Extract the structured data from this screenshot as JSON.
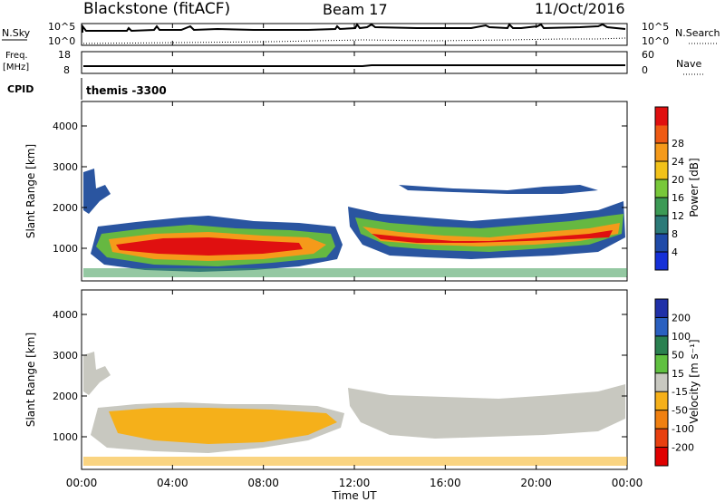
{
  "header": {
    "station": "Blackstone (fitACF)",
    "beam": "Beam 17",
    "date": "11/Oct/2016"
  },
  "top_panels": {
    "nsky_label": "N.Sky",
    "nsky_ticks": [
      "10^5",
      "10^0"
    ],
    "nsearch_label": "N.Search",
    "nsearch_ticks": [
      "10^5",
      "10^0"
    ],
    "freq_label": "Freq.",
    "freq_unit": "[MHz]",
    "freq_ticks": [
      "18",
      "8"
    ],
    "nave_label": "Nave",
    "nave_ticks": [
      "60",
      "0"
    ],
    "cpid_label": "CPID",
    "cpid_value": "themis -3300"
  },
  "colors": {
    "power_scale": [
      "#1530d8",
      "#1f4aa8",
      "#2c7a78",
      "#3c9a55",
      "#78c83a",
      "#f2c21a",
      "#f59a1a",
      "#ee5a14",
      "#e01010"
    ],
    "velocity_scale": [
      "#2030a8",
      "#2a60c0",
      "#2a8050",
      "#60c040",
      "#c8c8c0",
      "#f5b01a",
      "#f08010",
      "#e84010",
      "#e00000"
    ]
  },
  "chart_data": [
    {
      "type": "heatmap",
      "name": "power",
      "ylabel": "Slant Range [km]",
      "xlabel": "",
      "ylim": [
        200,
        4600
      ],
      "yticks": [
        "1000",
        "2000",
        "3000",
        "4000"
      ],
      "colorbar_label": "Power [dB]",
      "colorbar_ticks": [
        "4",
        "8",
        "12",
        "16",
        "20",
        "24",
        "28"
      ],
      "x_start_hours": 0,
      "x_end_hours": 24
    },
    {
      "type": "heatmap",
      "name": "velocity",
      "ylabel": "Slant Range [km]",
      "xlabel": "Time UT",
      "ylim": [
        200,
        4600
      ],
      "yticks": [
        "1000",
        "2000",
        "3000",
        "4000"
      ],
      "xticks": [
        "00:00",
        "04:00",
        "08:00",
        "12:00",
        "16:00",
        "20:00",
        "00:00"
      ],
      "colorbar_label": "Velocity [m s⁻¹]",
      "colorbar_ticks": [
        "200",
        "100",
        "50",
        "15",
        "-15",
        "-50",
        "-100",
        "-200"
      ]
    }
  ]
}
